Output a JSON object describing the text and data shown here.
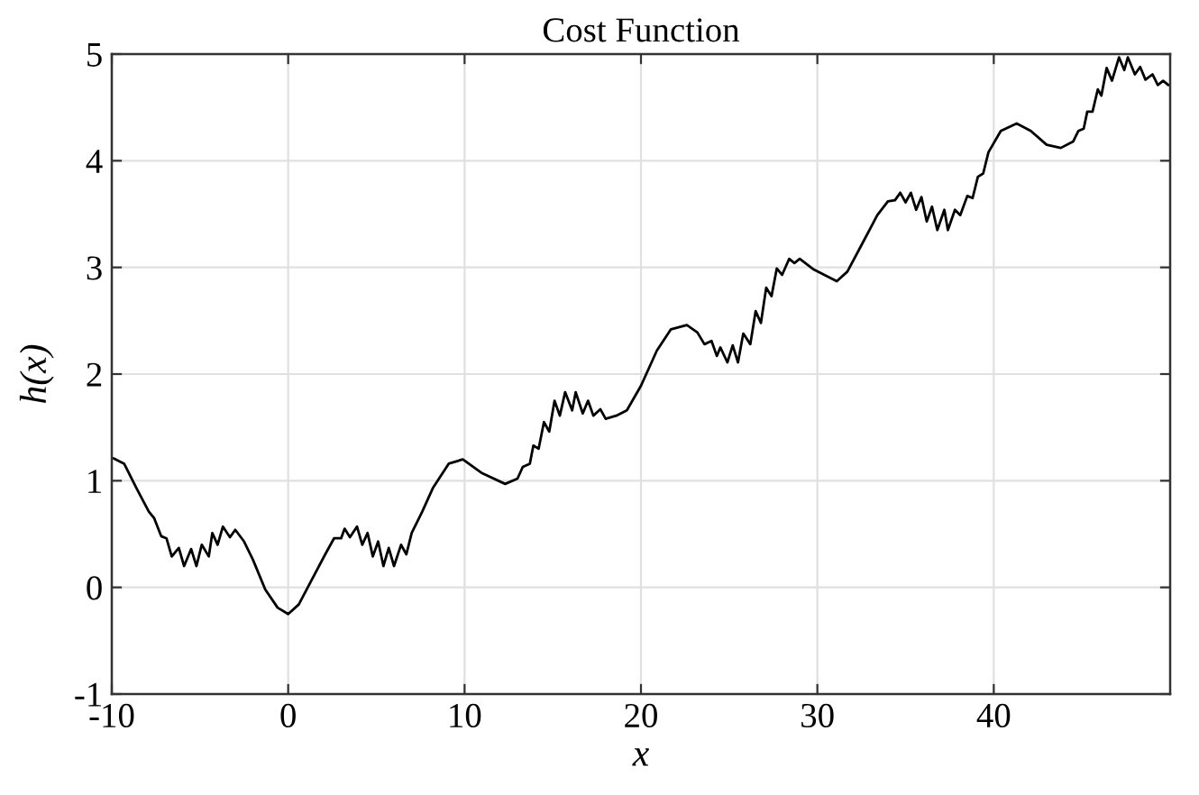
{
  "chart_data": {
    "type": "line",
    "title": "Cost Function",
    "xlabel": "x",
    "ylabel": "h(x)",
    "xlim": [
      -10,
      50
    ],
    "xticks": [
      -10,
      0,
      10,
      20,
      30,
      40
    ],
    "ylim": [
      -1,
      5
    ],
    "yticks": [
      -1,
      0,
      1,
      2,
      3,
      4,
      5
    ],
    "grid": true,
    "legend": false,
    "marker": "none",
    "line_style": "solid",
    "series": [
      {
        "color": "#000000",
        "x": [
          -9.9,
          -9.3,
          -8.6,
          -7.9,
          -7.6,
          -7.2,
          -6.9,
          -6.6,
          -6.2,
          -5.9,
          -5.5,
          -5.2,
          -4.9,
          -4.5,
          -4.3,
          -4.0,
          -3.7,
          -3.3,
          -3.0,
          -2.5,
          -2.0,
          -1.3,
          -0.6,
          0,
          0.6,
          1.3,
          2.1,
          2.6,
          3.0,
          3.2,
          3.5,
          3.9,
          4.2,
          4.5,
          4.8,
          5.1,
          5.4,
          5.7,
          6.0,
          6.4,
          6.7,
          7.0,
          7.6,
          8.2,
          9.1,
          9.9,
          11.0,
          12.3,
          13.0,
          13.3,
          13.7,
          13.9,
          14.2,
          14.5,
          14.8,
          15.1,
          15.4,
          15.7,
          16.1,
          16.3,
          16.7,
          17.0,
          17.3,
          17.7,
          18.0,
          18.6,
          19.2,
          20.0,
          20.9,
          21.7,
          22.6,
          23.2,
          23.6,
          24.0,
          24.3,
          24.5,
          24.9,
          25.2,
          25.5,
          25.8,
          26.2,
          26.5,
          26.8,
          27.1,
          27.4,
          27.7,
          28.0,
          28.4,
          28.7,
          29.0,
          29.8,
          31.1,
          31.7,
          32.6,
          33.4,
          34.0,
          34.4,
          34.7,
          35.0,
          35.3,
          35.6,
          35.9,
          36.2,
          36.5,
          36.8,
          37.2,
          37.4,
          37.8,
          38.1,
          38.5,
          38.8,
          39.1,
          39.4,
          39.7,
          40.4,
          41.3,
          42.1,
          43.0,
          43.8,
          44.5,
          44.8,
          45.1,
          45.3,
          45.6,
          45.9,
          46.1,
          46.4,
          46.7,
          47.1,
          47.4,
          47.6,
          48.0,
          48.3,
          48.6,
          49.0,
          49.3,
          49.6,
          49.9
        ],
        "values": [
          1.21,
          1.16,
          0.93,
          0.71,
          0.65,
          0.48,
          0.46,
          0.29,
          0.37,
          0.2,
          0.36,
          0.2,
          0.4,
          0.29,
          0.51,
          0.4,
          0.57,
          0.47,
          0.54,
          0.43,
          0.26,
          -0.02,
          -0.19,
          -0.25,
          -0.16,
          0.06,
          0.31,
          0.46,
          0.46,
          0.55,
          0.47,
          0.57,
          0.4,
          0.51,
          0.29,
          0.43,
          0.2,
          0.37,
          0.2,
          0.4,
          0.31,
          0.51,
          0.71,
          0.93,
          1.16,
          1.2,
          1.07,
          0.97,
          1.02,
          1.13,
          1.16,
          1.33,
          1.3,
          1.55,
          1.46,
          1.75,
          1.61,
          1.83,
          1.66,
          1.83,
          1.63,
          1.75,
          1.61,
          1.67,
          1.58,
          1.61,
          1.66,
          1.89,
          2.22,
          2.42,
          2.46,
          2.39,
          2.28,
          2.31,
          2.17,
          2.25,
          2.11,
          2.27,
          2.11,
          2.38,
          2.28,
          2.59,
          2.48,
          2.81,
          2.73,
          2.99,
          2.93,
          3.08,
          3.04,
          3.08,
          2.98,
          2.87,
          2.96,
          3.24,
          3.49,
          3.62,
          3.63,
          3.7,
          3.61,
          3.7,
          3.54,
          3.66,
          3.43,
          3.57,
          3.35,
          3.54,
          3.35,
          3.54,
          3.49,
          3.67,
          3.65,
          3.85,
          3.88,
          4.08,
          4.28,
          4.35,
          4.28,
          4.15,
          4.12,
          4.18,
          4.28,
          4.3,
          4.46,
          4.46,
          4.67,
          4.61,
          4.87,
          4.75,
          4.97,
          4.85,
          4.97,
          4.81,
          4.88,
          4.76,
          4.81,
          4.71,
          4.75,
          4.71
        ]
      }
    ]
  }
}
